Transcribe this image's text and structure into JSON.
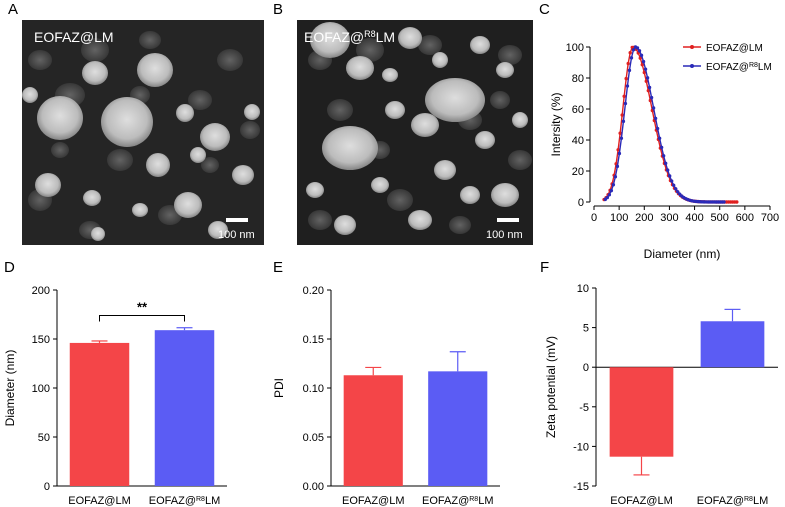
{
  "panels": {
    "A": {
      "label": "A",
      "image_label": "EOFAZ@LM",
      "scale_bar": "100 nm"
    },
    "B": {
      "label": "B",
      "image_label_main": "EOFAZ@",
      "image_label_sup": "R8",
      "image_label_end": "LM",
      "scale_bar": "100 nm"
    },
    "C": {
      "label": "C"
    },
    "D": {
      "label": "D",
      "significance": "**"
    },
    "E": {
      "label": "E"
    },
    "F": {
      "label": "F"
    }
  },
  "colors": {
    "red": "#f44548",
    "blue": "#5b5cf4",
    "line_red": "#e02020",
    "line_blue": "#2a2ab8"
  },
  "chart_data": [
    {
      "id": "C",
      "type": "line",
      "xlabel": "Diameter (nm)",
      "ylabel": "Intersity (%)",
      "xlim": [
        0,
        700
      ],
      "ylim": [
        0,
        100
      ],
      "xticks": [
        "0",
        "100",
        "200",
        "300",
        "400",
        "500",
        "600",
        "700"
      ],
      "yticks": [
        "0",
        "20",
        "40",
        "60",
        "80",
        "100"
      ],
      "series": [
        {
          "name": "EOFAZ@LM",
          "name_main": "EOFAZ@LM",
          "name_sup": "",
          "name_end": "",
          "color": "#e02020",
          "peak": 155,
          "sigma_left": 40,
          "sigma_right": 75,
          "x_start": 40,
          "x_end": 570,
          "step": 8
        },
        {
          "name": "EOFAZ@R8LM",
          "name_main": "EOFAZ@",
          "name_sup": "R8",
          "name_end": "LM",
          "color": "#2a2ab8",
          "peak": 165,
          "sigma_left": 42,
          "sigma_right": 72,
          "x_start": 45,
          "x_end": 520,
          "step": 8
        }
      ]
    },
    {
      "id": "D",
      "type": "bar",
      "ylabel": "Diameter (nm)",
      "ylim": [
        0,
        200
      ],
      "yticks": [
        "0",
        "50",
        "100",
        "150",
        "200"
      ],
      "categories": [
        "EOFAZ@LM",
        "EOFAZ@R8LM"
      ],
      "category_main": [
        "EOFAZ@LM",
        "EOFAZ@"
      ],
      "category_sup": [
        "",
        "R8"
      ],
      "category_end": [
        "",
        "LM"
      ],
      "values": [
        146,
        159
      ],
      "errors": [
        2,
        2.5
      ]
    },
    {
      "id": "E",
      "type": "bar",
      "ylabel": "PDI",
      "ylim": [
        0,
        0.2
      ],
      "yticks": [
        "0.00",
        "0.05",
        "0.10",
        "0.15",
        "0.20"
      ],
      "categories": [
        "EOFAZ@LM",
        "EOFAZ@R8LM"
      ],
      "category_main": [
        "EOFAZ@LM",
        "EOFAZ@"
      ],
      "category_sup": [
        "",
        "R8"
      ],
      "category_end": [
        "",
        "LM"
      ],
      "values": [
        0.113,
        0.117
      ],
      "errors": [
        0.008,
        0.02
      ]
    },
    {
      "id": "F",
      "type": "bar",
      "ylabel": "Zeta potential (mV)",
      "ylim": [
        -15,
        10
      ],
      "yticks": [
        "-15",
        "-10",
        "-5",
        "0",
        "5",
        "10"
      ],
      "categories": [
        "EOFAZ@LM",
        "EOFAZ@R8LM"
      ],
      "category_main": [
        "EOFAZ@LM",
        "EOFAZ@"
      ],
      "category_sup": [
        "",
        "R8"
      ],
      "category_end": [
        "",
        "LM"
      ],
      "values": [
        -11.3,
        5.8
      ],
      "errors": [
        2.3,
        1.5
      ]
    }
  ]
}
